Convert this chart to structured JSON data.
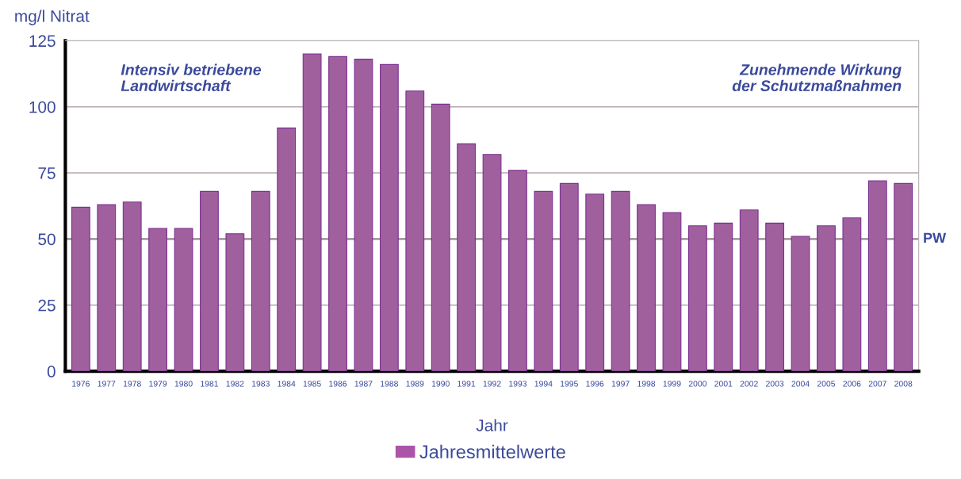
{
  "chart_data": {
    "type": "bar",
    "ylabel": "mg/l Nitrat",
    "xlabel": "Jahr",
    "categories": [
      "1976",
      "1977",
      "1978",
      "1979",
      "1980",
      "1981",
      "1982",
      "1983",
      "1984",
      "1985",
      "1986",
      "1987",
      "1988",
      "1989",
      "1990",
      "1991",
      "1992",
      "1993",
      "1994",
      "1995",
      "1996",
      "1997",
      "1998",
      "1999",
      "2000",
      "2001",
      "2002",
      "2003",
      "2004",
      "2005",
      "2006",
      "2007",
      "2008"
    ],
    "series": [
      {
        "name": "Jahresmittelwerte",
        "color": "#ab55a8",
        "values": [
          62,
          63,
          64,
          54,
          54,
          68,
          52,
          68,
          92,
          120,
          119,
          118,
          116,
          106,
          101,
          86,
          82,
          76,
          68,
          71,
          67,
          68,
          63,
          60,
          55,
          56,
          61,
          56,
          51,
          55,
          58,
          72,
          71
        ]
      }
    ],
    "ylim": [
      0,
      125
    ],
    "yticks": [
      0,
      25,
      50,
      75,
      100,
      125
    ],
    "grid": "y",
    "legend": "bottom",
    "ref_lines": [
      {
        "axis": "y",
        "value": 50,
        "label": "PW",
        "color": "#9a8890"
      }
    ],
    "annotations": [
      "Intensiv betriebene\nLandwirtschaft",
      "Zunehmende Wirkung\nder Schutzmaßnahmen"
    ]
  }
}
